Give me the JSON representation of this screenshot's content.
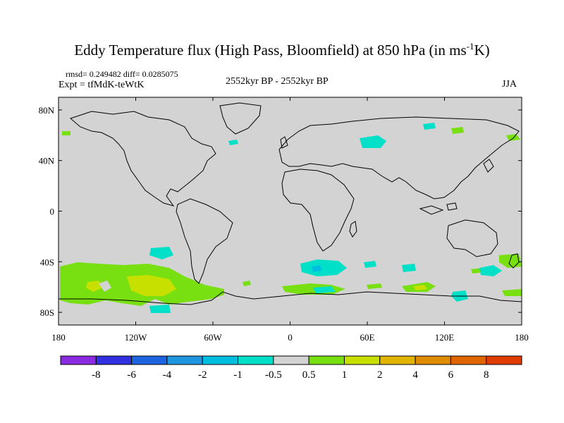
{
  "header": {
    "title_main": "Eddy Temperature flux (High Pass, Bloomfield) at 850 hPa (in ms",
    "title_sup": "-1",
    "title_end": "K)",
    "stats": "rmsd= 0.249482 diff= 0.0285075",
    "experiment": "Expt = tfMdK-teWtK",
    "period": "2552kyr BP - 2552kyr BP",
    "season": "JJA"
  },
  "map": {
    "background": "#d3d3d3",
    "lat_labels": [
      {
        "label": "80N",
        "lat": 80
      },
      {
        "label": "40N",
        "lat": 40
      },
      {
        "label": "0",
        "lat": 0
      },
      {
        "label": "40S",
        "lat": -40
      },
      {
        "label": "80S",
        "lat": -80
      }
    ],
    "lon_labels": [
      {
        "label": "180",
        "lon": -180
      },
      {
        "label": "120W",
        "lon": -120
      },
      {
        "label": "60W",
        "lon": -60
      },
      {
        "label": "0",
        "lon": 0
      },
      {
        "label": "60E",
        "lon": 60
      },
      {
        "label": "120E",
        "lon": 120
      },
      {
        "label": "180",
        "lon": 180
      }
    ]
  },
  "colorbar": {
    "colors": [
      "#8a2be2",
      "#3030e0",
      "#1e64e0",
      "#1e96e0",
      "#00bee0",
      "#00e0c8",
      "#d3d3d3",
      "#78e010",
      "#c8e000",
      "#e0b400",
      "#e08c00",
      "#e06400",
      "#e03c00"
    ],
    "labels": [
      "-8",
      "-6",
      "-4",
      "-2",
      "-1",
      "-0.5",
      "0.5",
      "1",
      "2",
      "4",
      "6",
      "8"
    ]
  }
}
